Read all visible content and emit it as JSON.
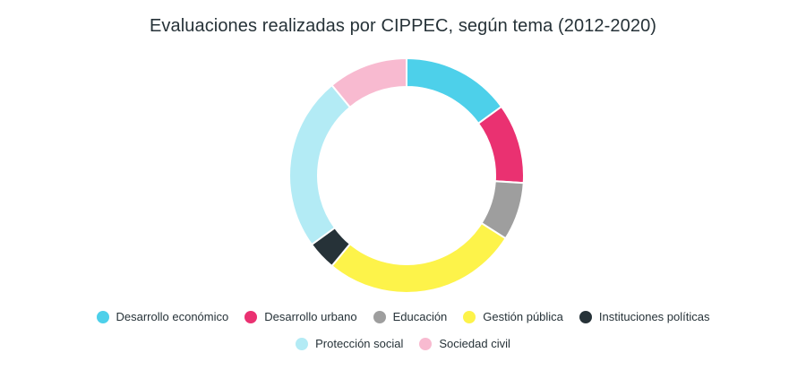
{
  "chart_data": {
    "type": "pie",
    "title": "Evaluaciones realizadas por CIPPEC, según tema (2012-2020)",
    "donut": true,
    "categories": [
      "Desarrollo económico",
      "Desarrollo urbano",
      "Educación",
      "Gestión pública",
      "Instituciones políticas",
      "Protección social",
      "Sociedad civil"
    ],
    "values": [
      15,
      11,
      8,
      27,
      4,
      24,
      11
    ],
    "colors": [
      "#4dd0ea",
      "#ea3171",
      "#9e9e9e",
      "#fdf34a",
      "#263238",
      "#b3ebf5",
      "#f8bad0"
    ],
    "legend_position": "bottom"
  }
}
